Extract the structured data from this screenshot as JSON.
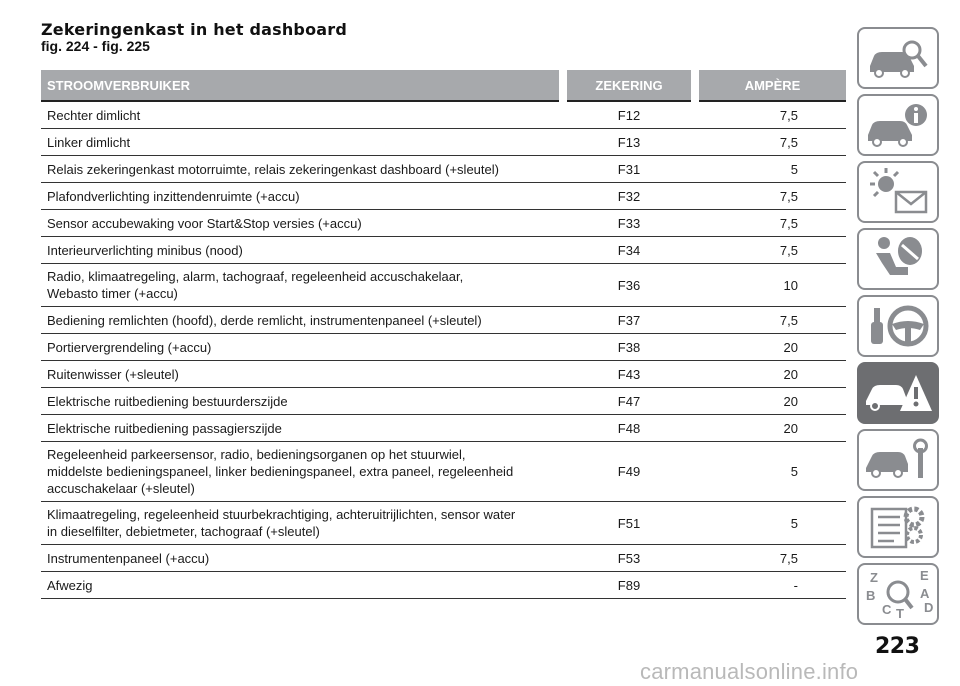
{
  "heading": {
    "title": "Zekeringenkast in het dashboard",
    "subtitle": "fig. 224 - fig. 225"
  },
  "table": {
    "headers": [
      "STROOMVERBRUIKER",
      "ZEKERING",
      "AMPÈRE"
    ],
    "rows": [
      {
        "consumer": "Rechter dimlicht",
        "fuse": "F12",
        "ampere": "7,5"
      },
      {
        "consumer": "Linker dimlicht",
        "fuse": "F13",
        "ampere": "7,5"
      },
      {
        "consumer": "Relais zekeringenkast motorruimte, relais zekeringenkast dashboard (+sleutel)",
        "fuse": "F31",
        "ampere": "5"
      },
      {
        "consumer": "Plafondverlichting inzittendenruimte (+accu)",
        "fuse": "F32",
        "ampere": "7,5"
      },
      {
        "consumer": "Sensor accubewaking voor Start&Stop versies (+accu)",
        "fuse": "F33",
        "ampere": "7,5"
      },
      {
        "consumer": "Interieurverlichting minibus (nood)",
        "fuse": "F34",
        "ampere": "7,5"
      },
      {
        "consumer": "Radio, klimaatregeling, alarm, tachograaf, regeleenheid accuschakelaar,\nWebasto timer (+accu)",
        "fuse": "F36",
        "ampere": "10"
      },
      {
        "consumer": "Bediening remlichten (hoofd), derde remlicht, instrumentenpaneel (+sleutel)",
        "fuse": "F37",
        "ampere": "7,5"
      },
      {
        "consumer": "Portiervergrendeling (+accu)",
        "fuse": "F38",
        "ampere": "20"
      },
      {
        "consumer": "Ruitenwisser (+sleutel)",
        "fuse": "F43",
        "ampere": "20"
      },
      {
        "consumer": "Elektrische ruitbediening bestuurderszijde",
        "fuse": "F47",
        "ampere": "20"
      },
      {
        "consumer": "Elektrische ruitbediening passagierszijde",
        "fuse": "F48",
        "ampere": "20"
      },
      {
        "consumer": "Regeleenheid parkeersensor, radio, bedieningsorganen op het stuurwiel,\nmiddelste bedieningspaneel, linker bedieningspaneel, extra paneel, regeleenheid\naccuschakelaar (+sleutel)",
        "fuse": "F49",
        "ampere": "5"
      },
      {
        "consumer": "Klimaatregeling, regeleenheid stuurbekrachtiging, achteruitrijlichten, sensor water\nin dieselfilter, debietmeter, tachograaf (+sleutel)",
        "fuse": "F51",
        "ampere": "5"
      },
      {
        "consumer": "Instrumentenpaneel (+accu)",
        "fuse": "F53",
        "ampere": "7,5"
      },
      {
        "consumer": "Afwezig",
        "fuse": "F89",
        "ampere": "-"
      }
    ]
  },
  "sidebar": {
    "tabs": [
      {
        "icon": "car-search-icon",
        "active": false
      },
      {
        "icon": "car-info-icon",
        "active": false
      },
      {
        "icon": "warning-lights-icon",
        "active": false
      },
      {
        "icon": "seat-airbag-icon",
        "active": false
      },
      {
        "icon": "steering-wheel-icon",
        "active": false
      },
      {
        "icon": "car-emergency-icon",
        "active": true
      },
      {
        "icon": "car-maintenance-icon",
        "active": false
      },
      {
        "icon": "specs-gear-icon",
        "active": false
      },
      {
        "icon": "index-search-icon",
        "active": false
      }
    ],
    "index_letters": [
      "Z",
      "E",
      "A",
      "B",
      "C",
      "T",
      "D"
    ],
    "colors": {
      "border": "#8a8c90",
      "active": "#6d6e71"
    }
  },
  "footer": {
    "page_number": "223",
    "watermark": "carmanualsonline.info"
  }
}
